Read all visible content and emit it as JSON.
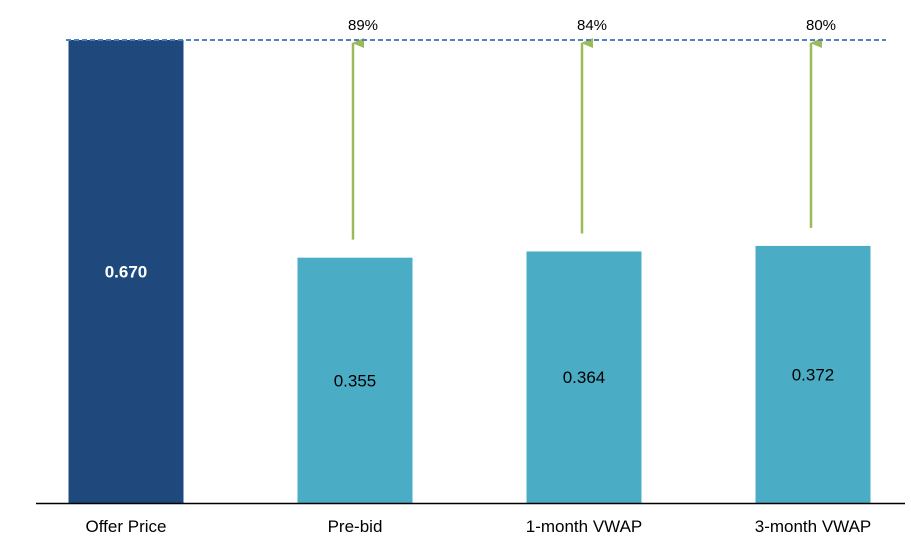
{
  "chart_data": {
    "type": "bar",
    "categories": [
      "Offer Price",
      "Pre-bid",
      "1-month VWAP",
      "3-month VWAP"
    ],
    "values": [
      0.67,
      0.355,
      0.364,
      0.372
    ],
    "value_labels": [
      "0.670",
      "0.355",
      "0.364",
      "0.372"
    ],
    "premiums": [
      null,
      "89%",
      "84%",
      "80%"
    ],
    "ylim": [
      0,
      0.67
    ],
    "grid": false,
    "legend": "none",
    "reference_line": {
      "value": 0.67,
      "style": "dashed"
    },
    "colors": {
      "offer_bar": "#1f497d",
      "comparison_bar": "#4bacc6",
      "arrow": "#9bbb59",
      "reference_line": "#4f81bd",
      "axis": "#000000"
    }
  }
}
